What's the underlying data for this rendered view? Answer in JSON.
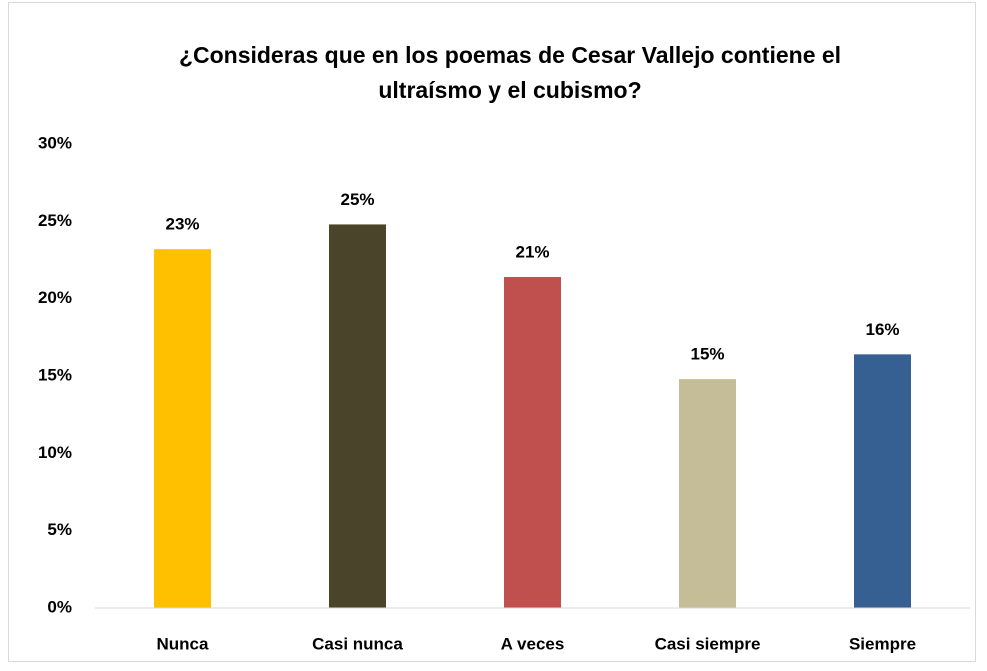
{
  "chart_data": {
    "type": "bar",
    "title": "¿Consideras que en los poemas de Cesar Vallejo contiene el ultraísmo y el cubismo?",
    "categories": [
      "Nunca",
      "Casi nunca",
      "A veces",
      "Casi siempre",
      "Siempre"
    ],
    "values": [
      23.2,
      24.8,
      21.4,
      14.8,
      16.4
    ],
    "value_labels": [
      "23%",
      "25%",
      "21%",
      "15%",
      "16%"
    ],
    "colors": [
      "#ffc000",
      "#4a452a",
      "#c0504d",
      "#c4bd97",
      "#376092"
    ],
    "ylim": [
      0,
      30
    ],
    "yticks": [
      {
        "value": 0,
        "label": "0%"
      },
      {
        "value": 5,
        "label": "5%"
      },
      {
        "value": 10,
        "label": "10%"
      },
      {
        "value": 15,
        "label": "15%"
      },
      {
        "value": 20,
        "label": "20%"
      },
      {
        "value": 25,
        "label": "25%"
      },
      {
        "value": 30,
        "label": "30%"
      }
    ],
    "grid": false
  }
}
